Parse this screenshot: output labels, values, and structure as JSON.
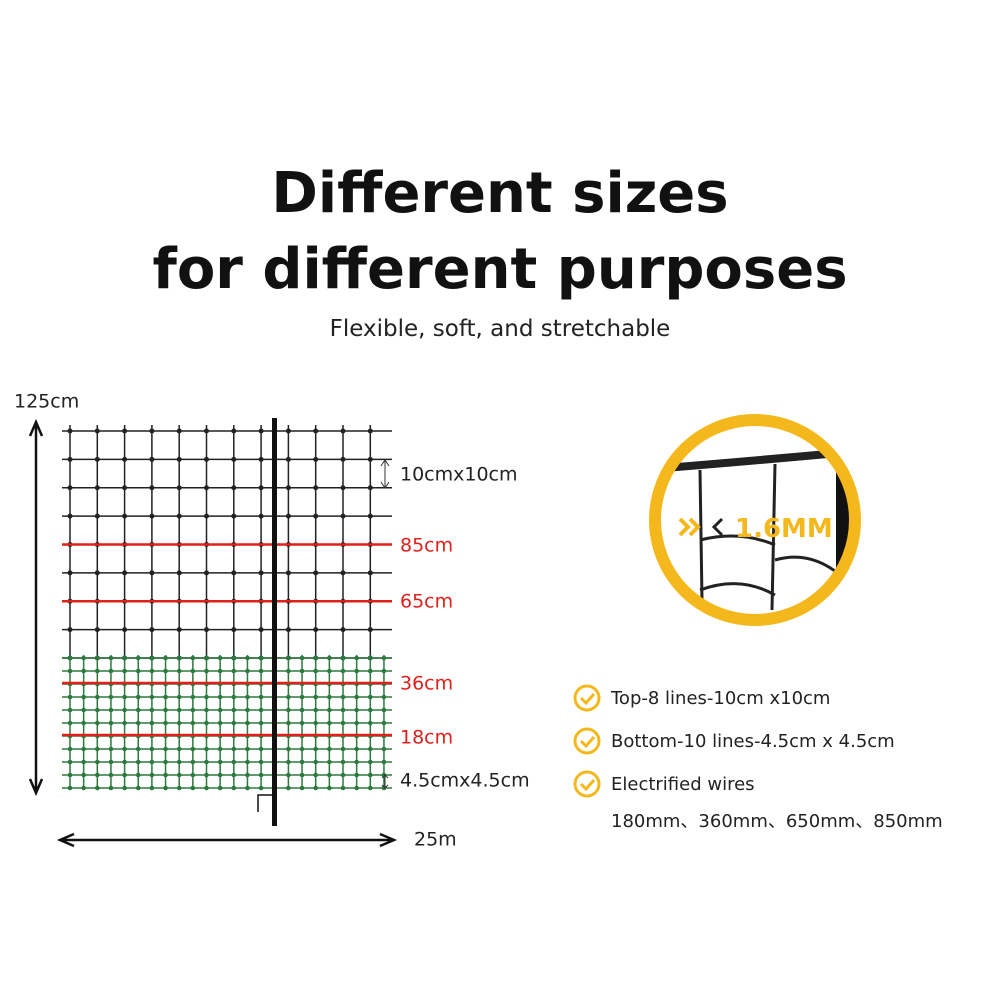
{
  "header": {
    "title_lines": [
      "Different sizes",
      "for different purposes"
    ],
    "subtitle": "Flexible, soft, and stretchable"
  },
  "diagram": {
    "height_label": "125cm",
    "top_mesh_label": "10cmx10cm",
    "wire_labels": [
      "85cm",
      "65cm",
      "36cm",
      "18cm"
    ],
    "bottom_mesh_label": "4.5cmx4.5cm",
    "length_label": "25m"
  },
  "detail": {
    "thickness_label": "1.6MM"
  },
  "features": [
    "Top-8 lines-10cm x10cm",
    "Bottom-10 lines-4.5cm x 4.5cm",
    "Electrified wires"
  ],
  "wire_heights": "180mm、360mm、650mm、850mm"
}
